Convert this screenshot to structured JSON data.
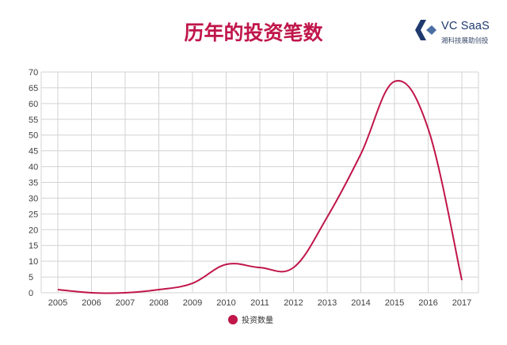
{
  "header": {
    "title": "历年的投资笔数"
  },
  "logo": {
    "name": "VC SaaS",
    "tagline": "湘科技展助创投"
  },
  "colors": {
    "accent": "#c0164a",
    "logo_blue": "#1e3a6e",
    "grid": "#d3d3d3"
  },
  "chart_data": {
    "type": "line",
    "title": "历年的投资笔数",
    "xlabel": "",
    "ylabel": "",
    "categories": [
      "2005",
      "2006",
      "2007",
      "2008",
      "2009",
      "2010",
      "2011",
      "2012",
      "2013",
      "2014",
      "2015",
      "2016",
      "2017"
    ],
    "series": [
      {
        "name": "投资数量",
        "values": [
          1,
          0,
          0,
          1,
          3,
          9,
          8,
          8,
          24,
          44,
          67,
          52,
          4
        ],
        "smooth": true
      }
    ],
    "y_ticks": [
      0,
      5,
      10,
      15,
      20,
      25,
      30,
      35,
      40,
      45,
      50,
      55,
      60,
      65,
      70
    ],
    "ylim": [
      0,
      70
    ],
    "grid": true,
    "legend": "bottom"
  }
}
